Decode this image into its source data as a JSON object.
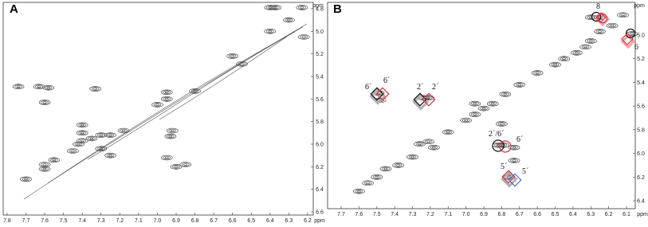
{
  "chart_data": [
    {
      "type": "contour",
      "title": "A",
      "xlabel": "ppm",
      "ylabel": "ppm",
      "xlim": [
        7.821,
        6.17
      ],
      "ylim": [
        4.744,
        6.628
      ],
      "xticks": [
        7.8,
        7.7,
        7.6,
        7.5,
        7.4,
        7.3,
        7.2,
        7.1,
        {
          "value": 7,
          "label": "7.0"
        },
        6.9,
        6.8,
        6.7,
        6.6,
        6.5,
        6.4,
        6.3,
        6.2
      ],
      "yticks": [
        4.8,
        {
          "value": 5,
          "label": "5.0"
        },
        5.2,
        5.4,
        5.6,
        5.8,
        {
          "value": 6,
          "label": "6.0"
        },
        6.2,
        6.4,
        6.6
      ],
      "x": [
        7.7,
        7.6,
        7.6,
        7.55,
        7.45,
        7.4,
        7.35,
        7.3,
        7.25,
        7.18,
        7.33,
        7.42,
        7.3,
        7.25,
        6.95,
        6.92,
        6.9,
        6.85,
        6.8,
        6.95,
        7.0,
        6.4,
        6.37,
        6.23,
        6.4,
        6.22,
        6.6,
        7.63,
        7.58,
        7.74,
        7.6,
        7.4,
        7.4,
        6.93,
        6.95,
        6.55,
        6.3
      ],
      "values": [
        6.31,
        6.18,
        6.22,
        6.14,
        6.06,
        5.97,
        5.95,
        5.92,
        5.92,
        5.88,
        5.51,
        6.0,
        6.04,
        6.1,
        5.6,
        5.88,
        6.2,
        6.18,
        5.53,
        5.54,
        5.65,
        4.79,
        4.79,
        4.79,
        5.0,
        5.05,
        5.22,
        5.49,
        5.5,
        5.49,
        5.63,
        5.83,
        5.9,
        5.93,
        6.12,
        5.29,
        4.9
      ]
    },
    {
      "type": "contour",
      "title": "B",
      "xlabel": "ppm",
      "ylabel": "ppm",
      "xlim": [
        7.776,
        6.051
      ],
      "ylim": [
        4.724,
        6.467
      ],
      "xticks": [
        7.7,
        7.6,
        7.5,
        7.4,
        7.3,
        7.2,
        7.1,
        {
          "value": 7,
          "label": "7.0"
        },
        6.9,
        6.8,
        6.7,
        6.6,
        6.5,
        6.4,
        6.3,
        6.2,
        6.1
      ],
      "yticks": [
        {
          "value": 5,
          "label": "5.0"
        },
        5.2,
        5.4,
        5.6,
        5.8,
        {
          "value": 6,
          "label": "6.0"
        },
        6.2,
        6.4
      ],
      "x": [
        7.6,
        7.55,
        7.5,
        7.45,
        7.38,
        7.3,
        7.26,
        7.21,
        7.18,
        7.1,
        7.0,
        6.95,
        6.9,
        6.85,
        6.78,
        6.7,
        6.6,
        6.5,
        6.45,
        6.38,
        6.33,
        6.3,
        6.25,
        6.18,
        6.12,
        6.3,
        6.25,
        6.07,
        7.49,
        7.24,
        7.21,
        6.82,
        6.79,
        6.76,
        6.73,
        6.73,
        6.95,
        6.8,
        7.48
      ],
      "values": [
        6.32,
        6.25,
        6.2,
        6.13,
        6.1,
        6.03,
        5.92,
        5.9,
        5.95,
        5.82,
        5.72,
        5.67,
        5.62,
        5.58,
        5.5,
        5.42,
        5.32,
        5.25,
        5.2,
        5.15,
        5.1,
        5.05,
        4.97,
        4.92,
        4.83,
        4.85,
        4.85,
        4.99,
        5.49,
        5.53,
        5.53,
        5.93,
        5.93,
        6.2,
        6.06,
        5.95,
        5.58,
        5.75,
        5.55
      ],
      "annotations": [
        "8",
        "6",
        "6´",
        "6´",
        "2´",
        "2´",
        "2´/6´",
        "6´",
        "5´",
        "5´"
      ]
    }
  ]
}
